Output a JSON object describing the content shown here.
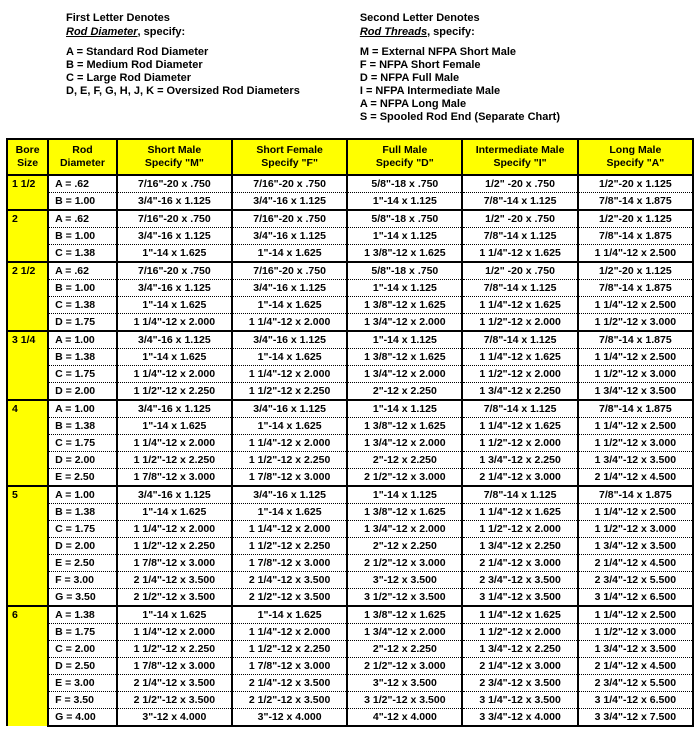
{
  "legend": {
    "left": {
      "heading": "First Letter Denotes",
      "sub_label": "Rod Diameter",
      "sub_suffix": ", specify:",
      "items": [
        "A = Standard Rod Diameter",
        "B = Medium Rod Diameter",
        "C = Large Rod Diameter",
        "D, E, F, G, H, J, K = Oversized Rod Diameters"
      ]
    },
    "right": {
      "heading": "Second Letter Denotes",
      "sub_label": "Rod Threads",
      "sub_suffix": ", specify:",
      "items": [
        "M = External NFPA Short Male",
        "F = NFPA Short Female",
        "D = NFPA Full Male",
        "I  = NFPA Intermediate Male",
        "A = NFPA Long Male",
        "S = Spooled Rod End (Separate Chart)"
      ]
    }
  },
  "columns": [
    {
      "l1": "Bore",
      "l2": "Size"
    },
    {
      "l1": "Rod",
      "l2": "Diameter"
    },
    {
      "l1": "Short Male",
      "l2": "Specify  \"M\""
    },
    {
      "l1": "Short Female",
      "l2": "Specify  \"F\""
    },
    {
      "l1": "Full Male",
      "l2": "Specify  \"D\""
    },
    {
      "l1": "Intermediate Male",
      "l2": "Specify  \"I\""
    },
    {
      "l1": "Long Male",
      "l2": "Specify  \"A\""
    }
  ],
  "groups": [
    {
      "bore": "1 1/2",
      "rows": [
        {
          "rod": "A =  .62",
          "c": [
            "7/16\"-20 x .750",
            "7/16\"-20 x .750",
            "5/8\"-18 x .750",
            "1/2\" -20 x .750",
            "1/2\"-20 x 1.125"
          ]
        },
        {
          "rod": "B = 1.00",
          "c": [
            "3/4\"-16 x 1.125",
            "3/4\"-16 x 1.125",
            "1\"-14 x 1.125",
            "7/8\"-14 x 1.125",
            "7/8\"-14 x 1.875"
          ]
        }
      ]
    },
    {
      "bore": "2",
      "rows": [
        {
          "rod": "A =  .62",
          "c": [
            "7/16\"-20 x .750",
            "7/16\"-20 x .750",
            "5/8\"-18 x .750",
            "1/2\" -20 x .750",
            "1/2\"-20 x 1.125"
          ]
        },
        {
          "rod": "B = 1.00",
          "c": [
            "3/4\"-16 x 1.125",
            "3/4\"-16 x 1.125",
            "1\"-14 x 1.125",
            "7/8\"-14 x 1.125",
            "7/8\"-14 x 1.875"
          ]
        },
        {
          "rod": "C = 1.38",
          "c": [
            "1\"-14 x 1.625",
            "1\"-14 x 1.625",
            "1 3/8\"-12 x 1.625",
            "1 1/4\"-12 x 1.625",
            "1 1/4\"-12 x 2.500"
          ]
        }
      ]
    },
    {
      "bore": "2 1/2",
      "rows": [
        {
          "rod": "A =  .62",
          "c": [
            "7/16\"-20 x .750",
            "7/16\"-20 x .750",
            "5/8\"-18 x .750",
            "1/2\" -20 x .750",
            "1/2\"-20 x 1.125"
          ]
        },
        {
          "rod": "B = 1.00",
          "c": [
            "3/4\"-16 x 1.125",
            "3/4\"-16 x 1.125",
            "1\"-14 x 1.125",
            "7/8\"-14 x 1.125",
            "7/8\"-14 x 1.875"
          ]
        },
        {
          "rod": "C = 1.38",
          "c": [
            "1\"-14 x 1.625",
            "1\"-14 x 1.625",
            "1 3/8\"-12 x 1.625",
            "1 1/4\"-12 x 1.625",
            "1 1/4\"-12 x 2.500"
          ]
        },
        {
          "rod": "D = 1.75",
          "c": [
            "1 1/4\"-12 x 2.000",
            "1 1/4\"-12 x 2.000",
            "1 3/4\"-12 x 2.000",
            "1 1/2\"-12 x 2.000",
            "1 1/2\"-12 x 3.000"
          ]
        }
      ]
    },
    {
      "bore": "3 1/4",
      "rows": [
        {
          "rod": "A = 1.00",
          "c": [
            "3/4\"-16 x 1.125",
            "3/4\"-16 x 1.125",
            "1\"-14 x 1.125",
            "7/8\"-14 x 1.125",
            "7/8\"-14 x 1.875"
          ]
        },
        {
          "rod": "B = 1.38",
          "c": [
            "1\"-14 x 1.625",
            "1\"-14 x 1.625",
            "1 3/8\"-12 x 1.625",
            "1 1/4\"-12 x 1.625",
            "1 1/4\"-12 x 2.500"
          ]
        },
        {
          "rod": "C = 1.75",
          "c": [
            "1 1/4\"-12 x 2.000",
            "1 1/4\"-12 x 2.000",
            "1 3/4\"-12 x 2.000",
            "1 1/2\"-12 x 2.000",
            "1 1/2\"-12 x 3.000"
          ]
        },
        {
          "rod": "D = 2.00",
          "c": [
            "1 1/2\"-12 x 2.250",
            "1 1/2\"-12 x 2.250",
            "2\"-12 x 2.250",
            "1 3/4\"-12 x 2.250",
            "1 3/4\"-12 x 3.500"
          ]
        }
      ]
    },
    {
      "bore": "4",
      "rows": [
        {
          "rod": "A = 1.00",
          "c": [
            "3/4\"-16 x 1.125",
            "3/4\"-16 x 1.125",
            "1\"-14 x 1.125",
            "7/8\"-14 x 1.125",
            "7/8\"-14 x 1.875"
          ]
        },
        {
          "rod": "B = 1.38",
          "c": [
            "1\"-14 x 1.625",
            "1\"-14 x 1.625",
            "1 3/8\"-12 x 1.625",
            "1 1/4\"-12 x 1.625",
            "1 1/4\"-12 x 2.500"
          ]
        },
        {
          "rod": "C = 1.75",
          "c": [
            "1 1/4\"-12 x 2.000",
            "1 1/4\"-12 x 2.000",
            "1 3/4\"-12 x 2.000",
            "1 1/2\"-12 x 2.000",
            "1 1/2\"-12 x 3.000"
          ]
        },
        {
          "rod": "D = 2.00",
          "c": [
            "1 1/2\"-12 x 2.250",
            "1 1/2\"-12 x 2.250",
            "2\"-12 x 2.250",
            "1 3/4\"-12 x 2.250",
            "1 3/4\"-12 x 3.500"
          ]
        },
        {
          "rod": "E = 2.50",
          "c": [
            "1 7/8\"-12 x 3.000",
            "1 7/8\"-12 x 3.000",
            "2 1/2\"-12 x 3.000",
            "2 1/4\"-12 x 3.000",
            "2 1/4\"-12 x 4.500"
          ]
        }
      ]
    },
    {
      "bore": "5",
      "rows": [
        {
          "rod": "A = 1.00",
          "c": [
            "3/4\"-16 x 1.125",
            "3/4\"-16 x 1.125",
            "1\"-14 x 1.125",
            "7/8\"-14 x 1.125",
            "7/8\"-14 x 1.875"
          ]
        },
        {
          "rod": "B = 1.38",
          "c": [
            "1\"-14 x 1.625",
            "1\"-14 x 1.625",
            "1 3/8\"-12 x 1.625",
            "1 1/4\"-12 x 1.625",
            "1 1/4\"-12 x 2.500"
          ]
        },
        {
          "rod": "C = 1.75",
          "c": [
            "1 1/4\"-12 x 2.000",
            "1 1/4\"-12 x 2.000",
            "1 3/4\"-12 x 2.000",
            "1 1/2\"-12 x 2.000",
            "1 1/2\"-12 x 3.000"
          ]
        },
        {
          "rod": "D = 2.00",
          "c": [
            "1 1/2\"-12 x 2.250",
            "1 1/2\"-12 x 2.250",
            "2\"-12 x 2.250",
            "1 3/4\"-12 x 2.250",
            "1 3/4\"-12 x 3.500"
          ]
        },
        {
          "rod": "E = 2.50",
          "c": [
            "1 7/8\"-12 x 3.000",
            "1 7/8\"-12 x 3.000",
            "2 1/2\"-12 x 3.000",
            "2 1/4\"-12 x 3.000",
            "2 1/4\"-12 x 4.500"
          ]
        },
        {
          "rod": "F = 3.00",
          "c": [
            "2 1/4\"-12 x 3.500",
            "2 1/4\"-12 x 3.500",
            "3\"-12 x 3.500",
            "2 3/4\"-12 x 3.500",
            "2 3/4\"-12 x 5.500"
          ]
        },
        {
          "rod": "G = 3.50",
          "c": [
            "2 1/2\"-12 x 3.500",
            "2 1/2\"-12 x 3.500",
            "3 1/2\"-12 x 3.500",
            "3 1/4\"-12 x 3.500",
            "3 1/4\"-12 x 6.500"
          ]
        }
      ]
    },
    {
      "bore": "6",
      "rows": [
        {
          "rod": "A = 1.38",
          "c": [
            "1\"-14 x 1.625",
            "1\"-14 x 1.625",
            "1 3/8\"-12 x 1.625",
            "1 1/4\"-12 x 1.625",
            "1 1/4\"-12 x 2.500"
          ]
        },
        {
          "rod": "B = 1.75",
          "c": [
            "1 1/4\"-12 x 2.000",
            "1 1/4\"-12 x 2.000",
            "1 3/4\"-12 x 2.000",
            "1 1/2\"-12 x 2.000",
            "1 1/2\"-12 x 3.000"
          ]
        },
        {
          "rod": "C = 2.00",
          "c": [
            "1 1/2\"-12 x 2.250",
            "1 1/2\"-12 x 2.250",
            "2\"-12 x 2.250",
            "1 3/4\"-12 x 2.250",
            "1 3/4\"-12 x 3.500"
          ]
        },
        {
          "rod": "D = 2.50",
          "c": [
            "1 7/8\"-12 x 3.000",
            "1 7/8\"-12 x 3.000",
            "2 1/2\"-12 x 3.000",
            "2 1/4\"-12 x 3.000",
            "2 1/4\"-12 x 4.500"
          ]
        },
        {
          "rod": "E = 3.00",
          "c": [
            "2 1/4\"-12 x 3.500",
            "2 1/4\"-12 x 3.500",
            "3\"-12 x 3.500",
            "2 3/4\"-12 x 3.500",
            "2 3/4\"-12 x 5.500"
          ]
        },
        {
          "rod": "F = 3.50",
          "c": [
            "2 1/2\"-12 x 3.500",
            "2 1/2\"-12 x 3.500",
            "3 1/2\"-12 x 3.500",
            "3 1/4\"-12 x 3.500",
            "3 1/4\"-12 x 6.500"
          ]
        },
        {
          "rod": "G = 4.00",
          "c": [
            "3\"-12 x 4.000",
            "3\"-12 x 4.000",
            "4\"-12 x 4.000",
            "3 3/4\"-12 x 4.000",
            "3 3/4\"-12 x 7.500"
          ]
        }
      ]
    }
  ]
}
